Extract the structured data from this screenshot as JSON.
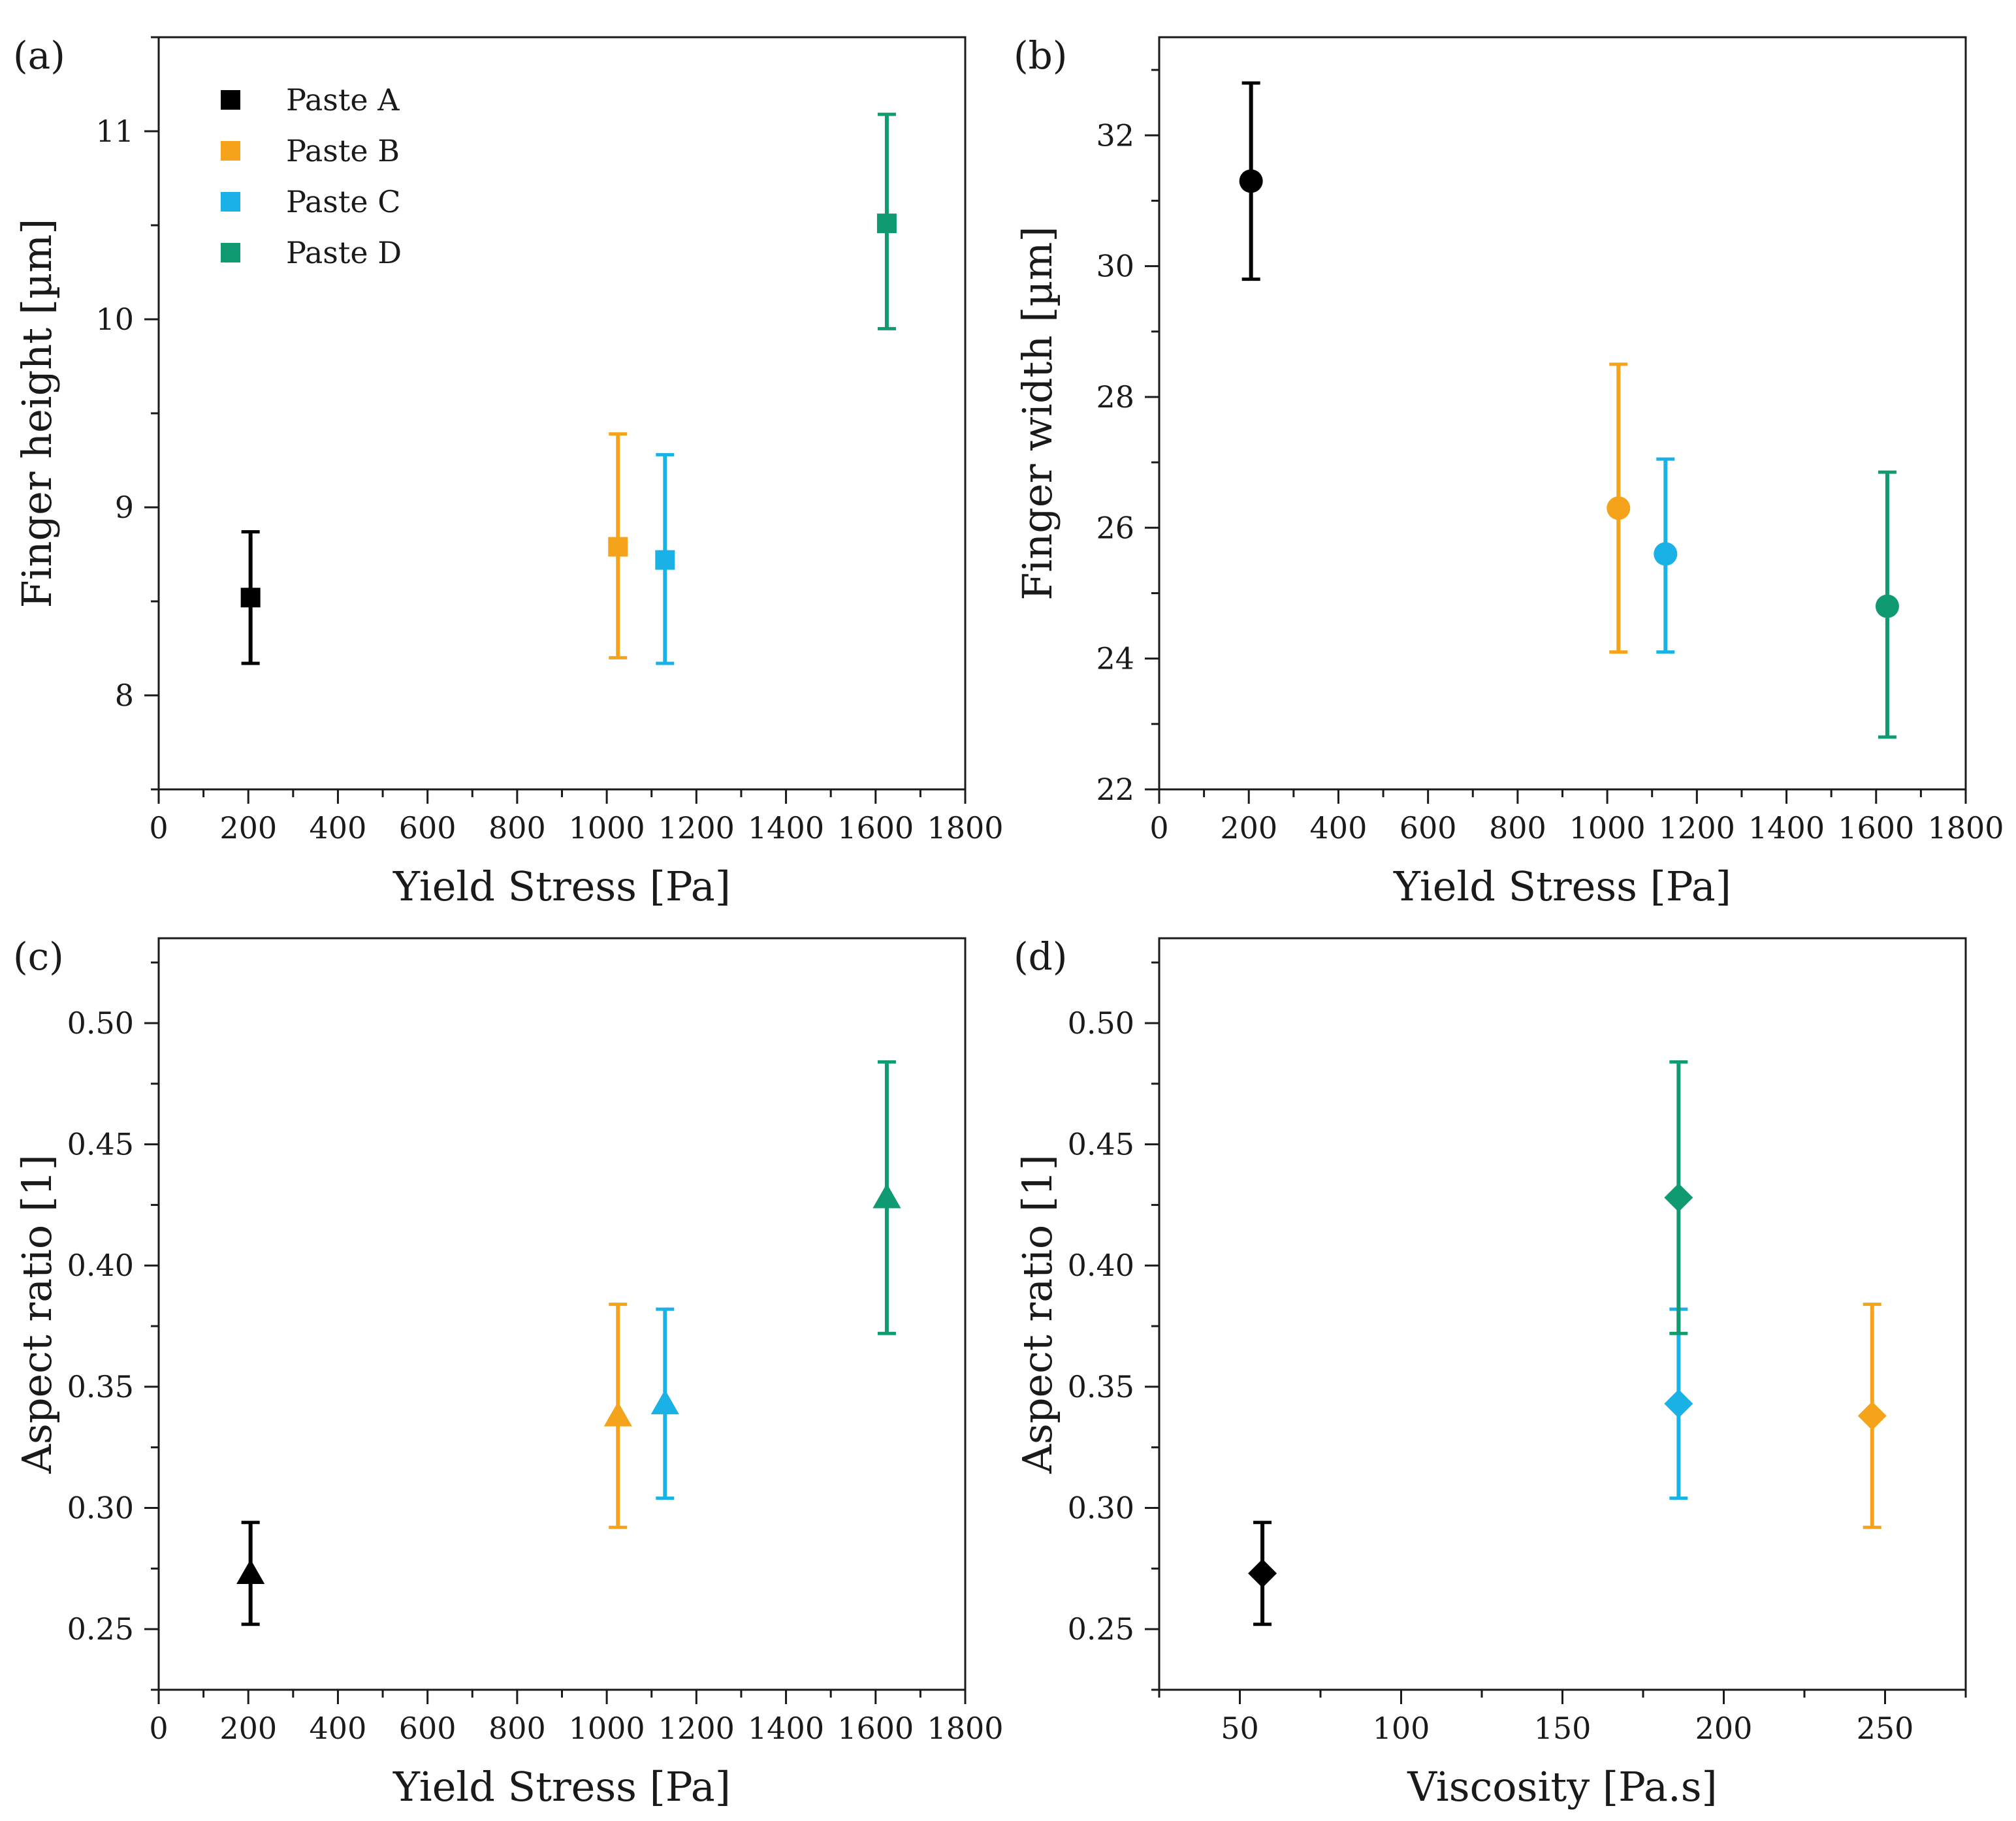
{
  "colors": {
    "paste_a": "#000000",
    "paste_b": "#f5a31a",
    "paste_c": "#1ab2e6",
    "paste_d": "#0f9a72"
  },
  "legend": [
    {
      "label": "Paste A",
      "color": "#000000"
    },
    {
      "label": "Paste B",
      "color": "#f5a31a"
    },
    {
      "label": "Paste C",
      "color": "#1ab2e6"
    },
    {
      "label": "Paste D",
      "color": "#0f9a72"
    }
  ],
  "chart_data": [
    {
      "panel": "(a)",
      "type": "scatter",
      "marker": "square",
      "xlabel": "Yield Stress [Pa]",
      "ylabel": "Finger height [µm]",
      "xlim": [
        0,
        1800
      ],
      "ylim": [
        7.5,
        11.5
      ],
      "xticks": [
        0,
        200,
        400,
        600,
        800,
        1000,
        1200,
        1400,
        1600,
        1800
      ],
      "yticks": [
        8,
        9,
        10,
        11
      ],
      "ytick_labels": [
        "8",
        "9",
        "10",
        "11"
      ],
      "legend_position": "top-left",
      "points": [
        {
          "series": "Paste A",
          "x": 205,
          "y": 8.52,
          "yerr_low": 8.17,
          "yerr_high": 8.87,
          "color": "#000000"
        },
        {
          "series": "Paste B",
          "x": 1025,
          "y": 8.79,
          "yerr_low": 8.2,
          "yerr_high": 9.39,
          "color": "#f5a31a"
        },
        {
          "series": "Paste C",
          "x": 1130,
          "y": 8.72,
          "yerr_low": 8.17,
          "yerr_high": 9.28,
          "color": "#1ab2e6"
        },
        {
          "series": "Paste D",
          "x": 1625,
          "y": 10.51,
          "yerr_low": 9.95,
          "yerr_high": 11.09,
          "color": "#0f9a72"
        }
      ]
    },
    {
      "panel": "(b)",
      "type": "scatter",
      "marker": "circle",
      "xlabel": "Yield Stress [Pa]",
      "ylabel": "Finger width [µm]",
      "xlim": [
        0,
        1800
      ],
      "ylim": [
        22,
        33.5
      ],
      "xticks": [
        0,
        200,
        400,
        600,
        800,
        1000,
        1200,
        1400,
        1600,
        1800
      ],
      "yticks": [
        22,
        24,
        26,
        28,
        30,
        32
      ],
      "ytick_labels": [
        "22",
        "24",
        "26",
        "28",
        "30",
        "32"
      ],
      "points": [
        {
          "series": "Paste A",
          "x": 205,
          "y": 31.3,
          "yerr_low": 29.8,
          "yerr_high": 32.8,
          "color": "#000000"
        },
        {
          "series": "Paste B",
          "x": 1025,
          "y": 26.3,
          "yerr_low": 24.1,
          "yerr_high": 28.5,
          "color": "#f5a31a"
        },
        {
          "series": "Paste C",
          "x": 1130,
          "y": 25.6,
          "yerr_low": 24.1,
          "yerr_high": 27.05,
          "color": "#1ab2e6"
        },
        {
          "series": "Paste D",
          "x": 1625,
          "y": 24.8,
          "yerr_low": 22.8,
          "yerr_high": 26.85,
          "color": "#0f9a72"
        }
      ]
    },
    {
      "panel": "(c)",
      "type": "scatter",
      "marker": "triangle",
      "xlabel": "Yield Stress [Pa]",
      "ylabel": "Aspect ratio [1]",
      "xlim": [
        0,
        1800
      ],
      "ylim": [
        0.225,
        0.535
      ],
      "xticks": [
        0,
        200,
        400,
        600,
        800,
        1000,
        1200,
        1400,
        1600,
        1800
      ],
      "yticks": [
        0.25,
        0.3,
        0.35,
        0.4,
        0.45,
        0.5
      ],
      "ytick_labels": [
        "0.25",
        "0.30",
        "0.35",
        "0.40",
        "0.45",
        "0.50"
      ],
      "points": [
        {
          "series": "Paste A",
          "x": 205,
          "y": 0.273,
          "yerr_low": 0.252,
          "yerr_high": 0.294,
          "color": "#000000"
        },
        {
          "series": "Paste B",
          "x": 1025,
          "y": 0.338,
          "yerr_low": 0.292,
          "yerr_high": 0.384,
          "color": "#f5a31a"
        },
        {
          "series": "Paste C",
          "x": 1130,
          "y": 0.343,
          "yerr_low": 0.304,
          "yerr_high": 0.382,
          "color": "#1ab2e6"
        },
        {
          "series": "Paste D",
          "x": 1625,
          "y": 0.428,
          "yerr_low": 0.372,
          "yerr_high": 0.484,
          "color": "#0f9a72"
        }
      ]
    },
    {
      "panel": "(d)",
      "type": "scatter",
      "marker": "diamond",
      "xlabel": "Viscosity [Pa.s]",
      "ylabel": "Aspect ratio [1]",
      "xlim": [
        25,
        275
      ],
      "ylim": [
        0.225,
        0.535
      ],
      "xticks": [
        50,
        100,
        150,
        200,
        250
      ],
      "yticks": [
        0.25,
        0.3,
        0.35,
        0.4,
        0.45,
        0.5
      ],
      "ytick_labels": [
        "0.25",
        "0.30",
        "0.35",
        "0.40",
        "0.45",
        "0.50"
      ],
      "points": [
        {
          "series": "Paste A",
          "x": 57,
          "y": 0.273,
          "yerr_low": 0.252,
          "yerr_high": 0.294,
          "color": "#000000"
        },
        {
          "series": "Paste B",
          "x": 246,
          "y": 0.338,
          "yerr_low": 0.292,
          "yerr_high": 0.384,
          "color": "#f5a31a"
        },
        {
          "series": "Paste C",
          "x": 186,
          "y": 0.343,
          "yerr_low": 0.304,
          "yerr_high": 0.382,
          "color": "#1ab2e6"
        },
        {
          "series": "Paste D",
          "x": 186,
          "y": 0.428,
          "yerr_low": 0.372,
          "yerr_high": 0.484,
          "color": "#0f9a72"
        }
      ]
    }
  ]
}
